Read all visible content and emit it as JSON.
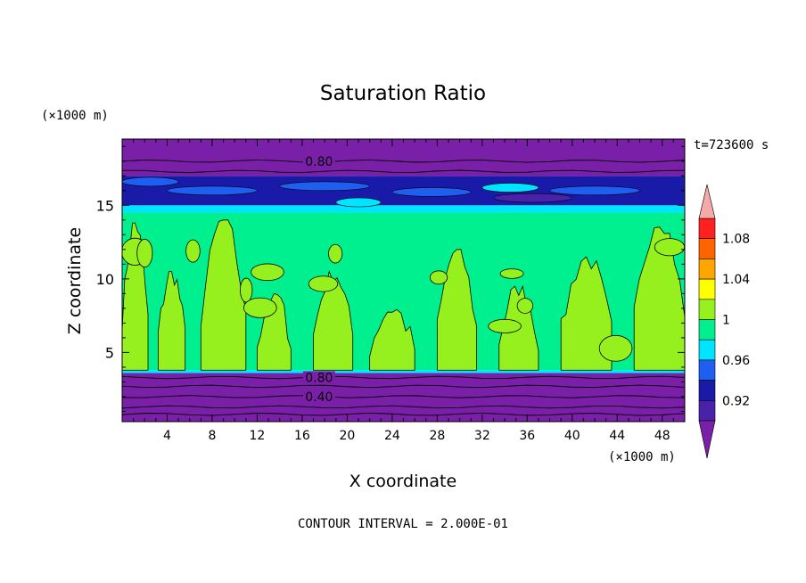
{
  "chart_data": {
    "type": "heatmap",
    "title": "Saturation Ratio",
    "xlabel": "X coordinate",
    "ylabel": "Z coordinate",
    "x_unit": "(×1000 m)",
    "y_unit": "(×1000 m)",
    "time_label": "t=723600 s",
    "footer": "CONTOUR INTERVAL = 2.000E-01",
    "xlim": [
      0,
      50
    ],
    "ylim": [
      0.3,
      19.5
    ],
    "x_ticks": [
      4,
      8,
      12,
      16,
      20,
      24,
      28,
      32,
      36,
      40,
      44,
      48
    ],
    "y_ticks": [
      5,
      10,
      15
    ],
    "colorbar": {
      "labels": [
        "0.92",
        "0.96",
        "1",
        "1.04",
        "1.08"
      ],
      "bins": [
        {
          "max": 0.9,
          "color": "#7a1fa8"
        },
        {
          "min": 0.9,
          "max": 0.92,
          "color": "#4a22aa"
        },
        {
          "min": 0.92,
          "max": 0.94,
          "color": "#1a1aa8"
        },
        {
          "min": 0.94,
          "max": 0.96,
          "color": "#1e5ef0"
        },
        {
          "min": 0.96,
          "max": 0.98,
          "color": "#00e5ff"
        },
        {
          "min": 0.98,
          "max": 1.0,
          "color": "#00f090"
        },
        {
          "min": 1.0,
          "max": 1.02,
          "color": "#96f01e"
        },
        {
          "min": 1.02,
          "max": 1.04,
          "color": "#ffff00"
        },
        {
          "min": 1.04,
          "max": 1.06,
          "color": "#ffa500"
        },
        {
          "min": 1.06,
          "max": 1.08,
          "color": "#ff6400"
        },
        {
          "min": 1.08,
          "max": 1.1,
          "color": "#ff2020"
        },
        {
          "min": 1.1,
          "color": "#f5aaaa"
        }
      ]
    },
    "contour_labels": [
      {
        "text": "0.80",
        "x": 17.5,
        "z": 18.0
      },
      {
        "text": "0.80",
        "x": 17.5,
        "z": 3.3
      },
      {
        "text": "0.40",
        "x": 17.5,
        "z": 2.0
      }
    ],
    "layers": [
      {
        "zmin": 0.3,
        "zmax": 3.6,
        "value": 0.5,
        "color": "#7a1fa8"
      },
      {
        "zmin": 3.6,
        "zmax": 3.8,
        "value": 0.97,
        "color": "#00e5ff"
      },
      {
        "zmin": 3.8,
        "zmax": 14.5,
        "value": 0.99,
        "color": "#00f090"
      },
      {
        "zmin": 14.5,
        "zmax": 15.0,
        "value": 0.97,
        "color": "#00e5ff"
      },
      {
        "zmin": 15.0,
        "zmax": 17.0,
        "value": 0.93,
        "color": "#1a1aa8"
      },
      {
        "zmin": 17.0,
        "zmax": 19.5,
        "value": 0.8,
        "color": "#7a1fa8"
      }
    ]
  }
}
